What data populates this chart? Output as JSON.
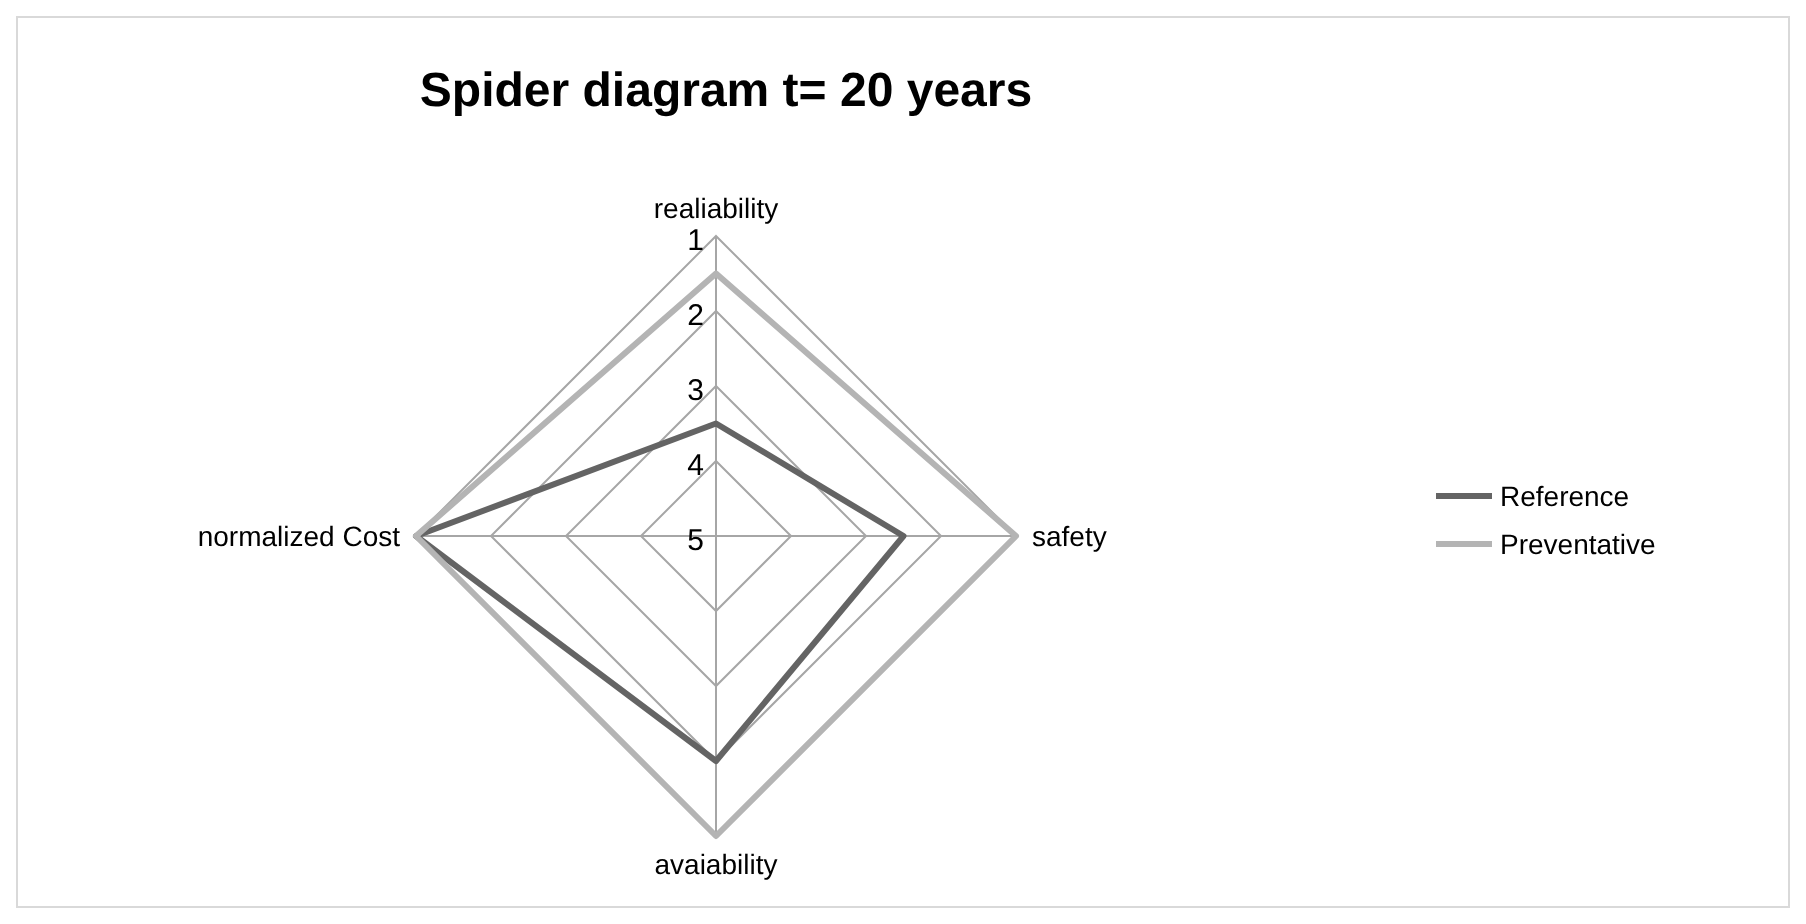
{
  "chart_data": {
    "type": "radar",
    "title": "Spider diagram t= 20 years",
    "categories": [
      "realiability",
      "safety",
      "avaiability",
      "normalized Cost"
    ],
    "ylim": [
      5,
      1
    ],
    "yticks": [
      1,
      2,
      3,
      4,
      5
    ],
    "legend": "right",
    "series": [
      {
        "name": "Reference",
        "color": "#646464",
        "values": [
          3.5,
          2.5,
          2,
          1
        ]
      },
      {
        "name": "Preventative",
        "color": "#b4b4b4",
        "values": [
          1.5,
          1,
          1,
          1
        ]
      }
    ]
  }
}
